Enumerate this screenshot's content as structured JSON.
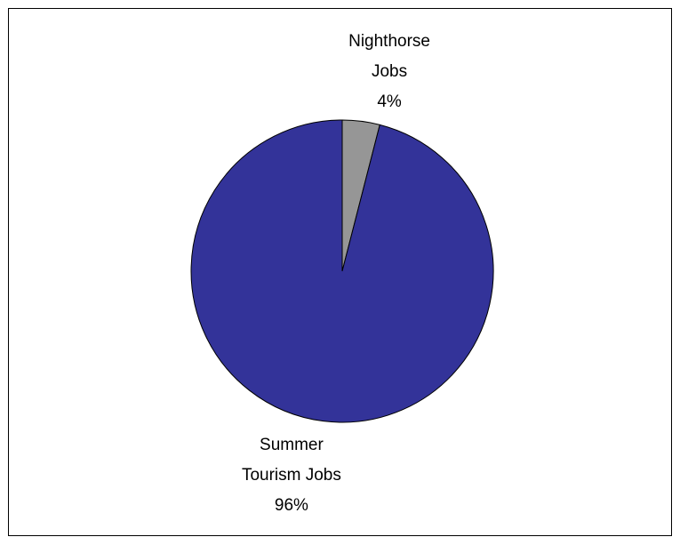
{
  "chart_data": {
    "type": "pie",
    "categories": [
      "Nighthorse Jobs",
      "Summer Tourism Jobs"
    ],
    "values": [
      4,
      96
    ],
    "value_labels": [
      "4%",
      "96%"
    ],
    "colors": [
      "#969696",
      "#333399"
    ]
  }
}
